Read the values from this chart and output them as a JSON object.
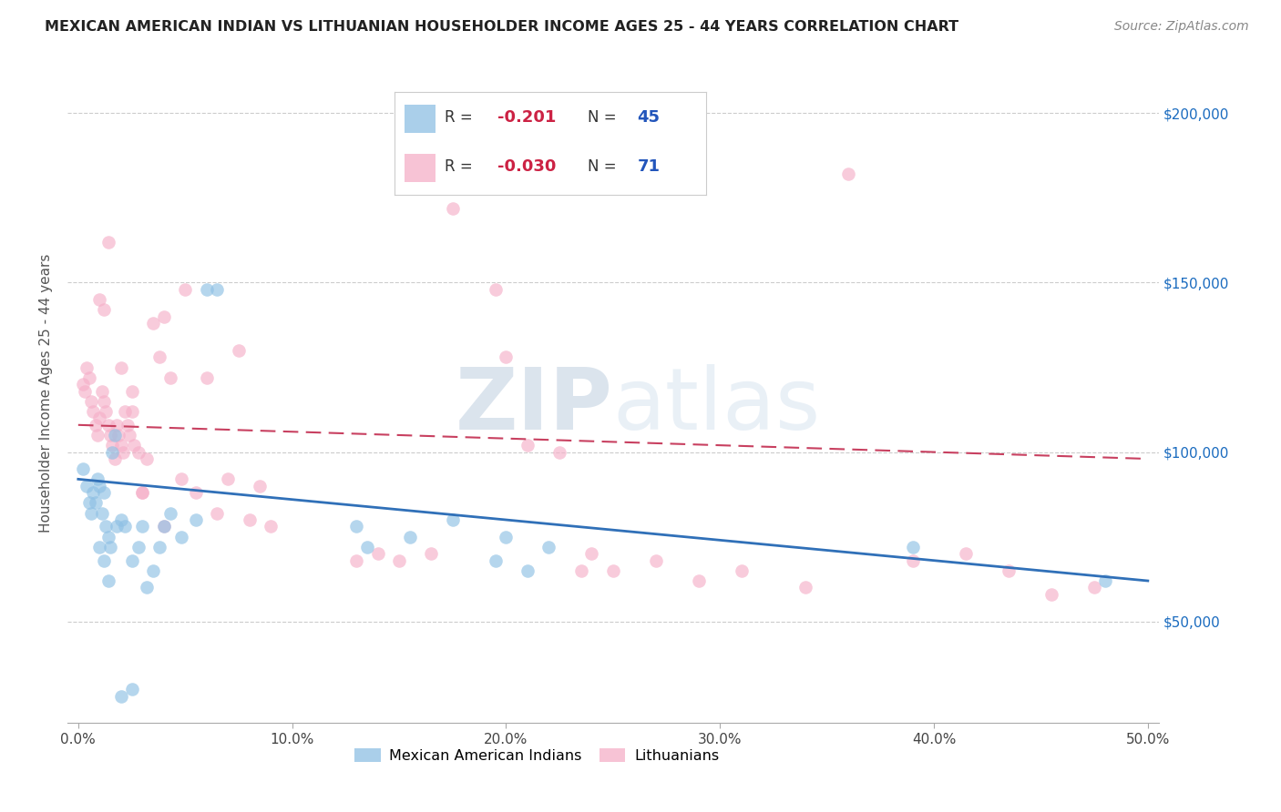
{
  "title": "MEXICAN AMERICAN INDIAN VS LITHUANIAN HOUSEHOLDER INCOME AGES 25 - 44 YEARS CORRELATION CHART",
  "source": "Source: ZipAtlas.com",
  "ylabel": "Householder Income Ages 25 - 44 years",
  "xlabel_ticks": [
    "0.0%",
    "10.0%",
    "20.0%",
    "30.0%",
    "40.0%",
    "50.0%"
  ],
  "xlabel_vals": [
    0.0,
    0.1,
    0.2,
    0.3,
    0.4,
    0.5
  ],
  "ylabel_vals": [
    50000,
    100000,
    150000,
    200000
  ],
  "ylabel_labels": [
    "$50,000",
    "$100,000",
    "$150,000",
    "$200,000"
  ],
  "ylim": [
    20000,
    215000
  ],
  "xlim": [
    -0.005,
    0.505
  ],
  "blue_color": "#8ec0e4",
  "pink_color": "#f5afc8",
  "blue_line_color": "#3070b8",
  "pink_line_color": "#c84060",
  "legend_R_blue": "-0.201",
  "legend_N_blue": "45",
  "legend_R_pink": "-0.030",
  "legend_N_pink": "71",
  "legend_label_blue": "Mexican American Indians",
  "legend_label_pink": "Lithuanians",
  "blue_x": [
    0.002,
    0.004,
    0.005,
    0.006,
    0.007,
    0.008,
    0.009,
    0.01,
    0.011,
    0.012,
    0.013,
    0.014,
    0.015,
    0.016,
    0.017,
    0.018,
    0.02,
    0.022,
    0.025,
    0.028,
    0.03,
    0.032,
    0.035,
    0.038,
    0.04,
    0.043,
    0.048,
    0.055,
    0.06,
    0.065,
    0.13,
    0.135,
    0.155,
    0.175,
    0.195,
    0.2,
    0.21,
    0.22,
    0.39,
    0.48,
    0.01,
    0.012,
    0.014,
    0.02,
    0.025
  ],
  "blue_y": [
    95000,
    90000,
    85000,
    82000,
    88000,
    85000,
    92000,
    90000,
    82000,
    88000,
    78000,
    75000,
    72000,
    100000,
    105000,
    78000,
    80000,
    78000,
    68000,
    72000,
    78000,
    60000,
    65000,
    72000,
    78000,
    82000,
    75000,
    80000,
    148000,
    148000,
    78000,
    72000,
    75000,
    80000,
    68000,
    75000,
    65000,
    72000,
    72000,
    62000,
    72000,
    68000,
    62000,
    28000,
    30000
  ],
  "pink_x": [
    0.002,
    0.003,
    0.004,
    0.005,
    0.006,
    0.007,
    0.008,
    0.009,
    0.01,
    0.011,
    0.012,
    0.013,
    0.014,
    0.015,
    0.016,
    0.017,
    0.018,
    0.019,
    0.02,
    0.021,
    0.022,
    0.023,
    0.024,
    0.025,
    0.026,
    0.028,
    0.03,
    0.032,
    0.035,
    0.038,
    0.04,
    0.043,
    0.048,
    0.05,
    0.055,
    0.06,
    0.065,
    0.07,
    0.075,
    0.08,
    0.085,
    0.09,
    0.13,
    0.14,
    0.15,
    0.165,
    0.175,
    0.195,
    0.2,
    0.21,
    0.225,
    0.235,
    0.24,
    0.25,
    0.27,
    0.29,
    0.31,
    0.34,
    0.36,
    0.39,
    0.415,
    0.435,
    0.455,
    0.475,
    0.01,
    0.012,
    0.014,
    0.02,
    0.025,
    0.03,
    0.04
  ],
  "pink_y": [
    120000,
    118000,
    125000,
    122000,
    115000,
    112000,
    108000,
    105000,
    110000,
    118000,
    115000,
    112000,
    108000,
    105000,
    102000,
    98000,
    108000,
    105000,
    102000,
    100000,
    112000,
    108000,
    105000,
    112000,
    102000,
    100000,
    88000,
    98000,
    138000,
    128000,
    140000,
    122000,
    92000,
    148000,
    88000,
    122000,
    82000,
    92000,
    130000,
    80000,
    90000,
    78000,
    68000,
    70000,
    68000,
    70000,
    172000,
    148000,
    128000,
    102000,
    100000,
    65000,
    70000,
    65000,
    68000,
    62000,
    65000,
    60000,
    182000,
    68000,
    70000,
    65000,
    58000,
    60000,
    145000,
    142000,
    162000,
    125000,
    118000,
    88000,
    78000
  ]
}
